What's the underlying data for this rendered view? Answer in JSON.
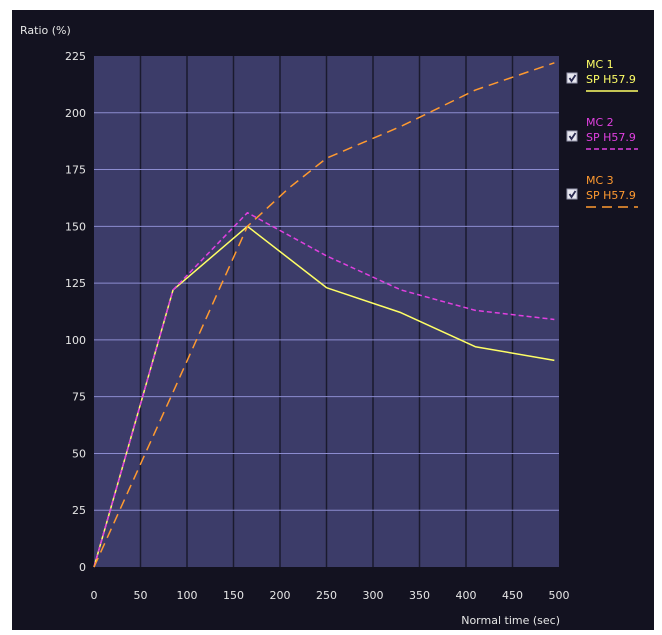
{
  "chart_data": {
    "type": "line",
    "ylabel": "Ratio (%)",
    "xlabel": "Normal time (sec)",
    "xlim": [
      0,
      500
    ],
    "ylim": [
      0,
      225
    ],
    "x_ticks": [
      "0",
      "50",
      "100",
      "150",
      "200",
      "250",
      "300",
      "350",
      "400",
      "450",
      "500"
    ],
    "y_ticks": [
      "0",
      "25",
      "50",
      "75",
      "100",
      "125",
      "150",
      "175",
      "200",
      "225"
    ],
    "grid": true,
    "legend_position": "right",
    "colors": {
      "background": "#131220",
      "plot_area": "#3c3c69",
      "grid": "#8c8cd0",
      "text": "#e6e6e6"
    },
    "series": [
      {
        "label_line1": "MC 1",
        "label_line2": "SP H57.9",
        "checked": true,
        "color": "#ffff66",
        "dash": "solid",
        "points": [
          [
            0,
            0
          ],
          [
            85,
            122
          ],
          [
            165,
            150
          ],
          [
            250,
            123
          ],
          [
            330,
            112
          ],
          [
            410,
            97
          ],
          [
            495,
            91
          ]
        ]
      },
      {
        "label_line1": "MC 2",
        "label_line2": "SP H57.9",
        "checked": true,
        "color": "#e040e0",
        "dash": "dashed",
        "points": [
          [
            0,
            0
          ],
          [
            85,
            122
          ],
          [
            165,
            156
          ],
          [
            250,
            137
          ],
          [
            330,
            122
          ],
          [
            410,
            113
          ],
          [
            495,
            109
          ]
        ]
      },
      {
        "label_line1": "MC 3",
        "label_line2": "SP H57.9",
        "checked": true,
        "color": "#ff9a30",
        "dash": "longdash",
        "points": [
          [
            0,
            0
          ],
          [
            85,
            77
          ],
          [
            165,
            150
          ],
          [
            210,
            167
          ],
          [
            250,
            180
          ],
          [
            330,
            194
          ],
          [
            410,
            210
          ],
          [
            495,
            222
          ]
        ]
      }
    ]
  }
}
